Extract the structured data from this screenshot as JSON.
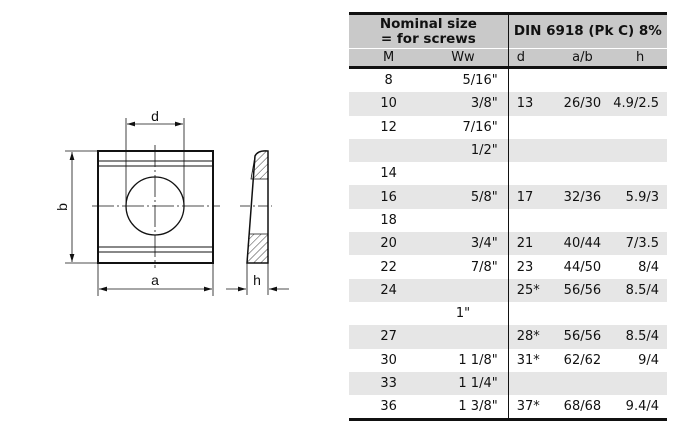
{
  "drawing": {
    "labels": {
      "d": "d",
      "b": "b",
      "a": "a",
      "h": "h"
    }
  },
  "table": {
    "header": {
      "nominal": [
        "Nominal size",
        "= for screws"
      ],
      "din": "DIN 6918 (Pk C) 8%",
      "columns": [
        "M",
        "Ww",
        "d",
        "a/b",
        "h"
      ]
    },
    "rows": [
      {
        "M": "8",
        "Ww": "5/16\"",
        "d": "",
        "ab": "",
        "h": ""
      },
      {
        "M": "10",
        "Ww": "3/8\"",
        "d": "13",
        "ab": "26/30",
        "h": "4.9/2.5"
      },
      {
        "M": "12",
        "Ww": "7/16\"",
        "d": "",
        "ab": "",
        "h": ""
      },
      {
        "M": "",
        "Ww": "1/2\"",
        "d": "",
        "ab": "",
        "h": ""
      },
      {
        "M": "14",
        "Ww": "",
        "d": "",
        "ab": "",
        "h": ""
      },
      {
        "M": "16",
        "Ww": "5/8\"",
        "d": "17",
        "ab": "32/36",
        "h": "5.9/3"
      },
      {
        "M": "18",
        "Ww": "",
        "d": "",
        "ab": "",
        "h": ""
      },
      {
        "M": "20",
        "Ww": "3/4\"",
        "d": "21",
        "ab": "40/44",
        "h": "7/3.5"
      },
      {
        "M": "22",
        "Ww": "7/8\"",
        "d": "23",
        "ab": "44/50",
        "h": "8/4"
      },
      {
        "M": "24",
        "Ww": "",
        "d": "25*",
        "ab": "56/56",
        "h": "8.5/4"
      },
      {
        "M": "",
        "Ww": "1\"",
        "d": "",
        "ab": "",
        "h": ""
      },
      {
        "M": "27",
        "Ww": "",
        "d": "28*",
        "ab": "56/56",
        "h": "8.5/4"
      },
      {
        "M": "30",
        "Ww": "1 1/8\"",
        "d": "31*",
        "ab": "62/62",
        "h": "9/4"
      },
      {
        "M": "33",
        "Ww": "1 1/4\"",
        "d": "",
        "ab": "",
        "h": ""
      },
      {
        "M": "36",
        "Ww": "1 3/8\"",
        "d": "37*",
        "ab": "68/68",
        "h": "9.4/4"
      }
    ]
  }
}
